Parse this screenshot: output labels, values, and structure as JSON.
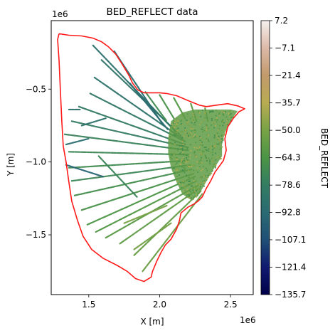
{
  "chart_data": {
    "type": "scatter",
    "title": "BED_REFLECT data",
    "xlabel": "X [m]",
    "ylabel": "Y [m]",
    "x_offset_label": "1e6",
    "y_offset_label": "1e6",
    "xlim": [
      1.235,
      2.66
    ],
    "ylim": [
      -1.91,
      -0.03
    ],
    "xticks": [
      1.5,
      2.0,
      2.5
    ],
    "xtick_labels": [
      "1.5",
      "2.0",
      "2.5"
    ],
    "yticks": [
      -0.5,
      -1.0,
      -1.5
    ],
    "ytick_labels": [
      "−0.5",
      "−1.0",
      "−1.5"
    ],
    "boundary_color": "#ff1a1a",
    "boundary": [
      [
        1.29,
        -0.12
      ],
      [
        1.36,
        -0.13
      ],
      [
        1.45,
        -0.135
      ],
      [
        1.53,
        -0.15
      ],
      [
        1.59,
        -0.175
      ],
      [
        1.64,
        -0.21
      ],
      [
        1.69,
        -0.26
      ],
      [
        1.73,
        -0.32
      ],
      [
        1.78,
        -0.4
      ],
      [
        1.81,
        -0.46
      ],
      [
        1.845,
        -0.505
      ],
      [
        1.89,
        -0.525
      ],
      [
        2.0,
        -0.525
      ],
      [
        2.05,
        -0.53
      ],
      [
        2.12,
        -0.545
      ],
      [
        2.18,
        -0.57
      ],
      [
        2.23,
        -0.59
      ],
      [
        2.28,
        -0.61
      ],
      [
        2.33,
        -0.62
      ],
      [
        2.4,
        -0.61
      ],
      [
        2.48,
        -0.6
      ],
      [
        2.55,
        -0.615
      ],
      [
        2.6,
        -0.635
      ],
      [
        2.56,
        -0.655
      ],
      [
        2.52,
        -0.7
      ],
      [
        2.48,
        -0.76
      ],
      [
        2.46,
        -0.84
      ],
      [
        2.47,
        -0.92
      ],
      [
        2.45,
        -0.99
      ],
      [
        2.42,
        -1.03
      ],
      [
        2.39,
        -1.07
      ],
      [
        2.36,
        -1.13
      ],
      [
        2.33,
        -1.18
      ],
      [
        2.3,
        -1.24
      ],
      [
        2.27,
        -1.27
      ],
      [
        2.24,
        -1.29
      ],
      [
        2.2,
        -1.31
      ],
      [
        2.15,
        -1.35
      ],
      [
        2.14,
        -1.4
      ],
      [
        2.12,
        -1.46
      ],
      [
        2.08,
        -1.53
      ],
      [
        2.04,
        -1.57
      ],
      [
        2.01,
        -1.62
      ],
      [
        1.98,
        -1.68
      ],
      [
        1.95,
        -1.75
      ],
      [
        1.94,
        -1.79
      ],
      [
        1.89,
        -1.82
      ],
      [
        1.83,
        -1.8
      ],
      [
        1.77,
        -1.75
      ],
      [
        1.7,
        -1.71
      ],
      [
        1.6,
        -1.66
      ],
      [
        1.52,
        -1.6
      ],
      [
        1.46,
        -1.51
      ],
      [
        1.42,
        -1.4
      ],
      [
        1.38,
        -1.27
      ],
      [
        1.36,
        -1.14
      ],
      [
        1.34,
        -1.0
      ],
      [
        1.32,
        -0.89
      ],
      [
        1.31,
        -0.72
      ],
      [
        1.3,
        -0.52
      ],
      [
        1.29,
        -0.3
      ],
      [
        1.28,
        -0.16
      ],
      [
        1.29,
        -0.12
      ]
    ],
    "colorbar": {
      "label": "BED_REFLECT",
      "min": -135.7,
      "max": 7.2,
      "ticks": [
        7.2,
        -7.1,
        -21.4,
        -35.7,
        -50.0,
        -64.3,
        -78.6,
        -92.8,
        -107.1,
        -121.4,
        -135.7
      ],
      "tick_labels": [
        "7.2",
        "−7.1",
        "−21.4",
        "−35.7",
        "−50.0",
        "−64.3",
        "−78.6",
        "−92.8",
        "−107.1",
        "−121.4",
        "−135.7"
      ],
      "colormap": "gist_earth",
      "colors": [
        "#f5f0ee",
        "#ddb9a8",
        "#c29a6c",
        "#b9ab52",
        "#78a245",
        "#4b9545",
        "#337c62",
        "#2a6b73",
        "#1f4f76",
        "#101a70",
        "#00004a"
      ]
    },
    "flight_lines_hub": [
      2.35,
      -0.95
    ],
    "flight_lines": [
      {
        "start": [
          1.53,
          -0.2
        ],
        "end": [
          2.12,
          -0.8
        ],
        "value": -88
      },
      {
        "start": [
          1.59,
          -0.3
        ],
        "end": [
          2.15,
          -0.82
        ],
        "value": -84
      },
      {
        "start": [
          1.54,
          -0.42
        ],
        "end": [
          2.16,
          -0.84
        ],
        "value": -86
      },
      {
        "start": [
          1.51,
          -0.53
        ],
        "end": [
          2.18,
          -0.86
        ],
        "value": -82
      },
      {
        "start": [
          1.43,
          -0.62
        ],
        "end": [
          2.18,
          -0.88
        ],
        "value": -80
      },
      {
        "start": [
          1.38,
          -0.72
        ],
        "end": [
          2.2,
          -0.9
        ],
        "value": -78
      },
      {
        "start": [
          1.33,
          -0.81
        ],
        "end": [
          2.2,
          -0.92
        ],
        "value": -75
      },
      {
        "start": [
          1.36,
          -0.93
        ],
        "end": [
          2.21,
          -0.95
        ],
        "value": -72
      },
      {
        "start": [
          1.36,
          -1.04
        ],
        "end": [
          2.21,
          -0.99
        ],
        "value": -70
      },
      {
        "start": [
          1.38,
          -1.13
        ],
        "end": [
          2.22,
          -1.02
        ],
        "value": -72
      },
      {
        "start": [
          1.4,
          -1.23
        ],
        "end": [
          2.23,
          -1.05
        ],
        "value": -68
      },
      {
        "start": [
          1.45,
          -1.33
        ],
        "end": [
          2.24,
          -1.08
        ],
        "value": -66
      },
      {
        "start": [
          1.49,
          -1.43
        ],
        "end": [
          2.25,
          -1.1
        ],
        "value": -64
      },
      {
        "start": [
          1.55,
          -1.48
        ],
        "end": [
          2.26,
          -1.13
        ],
        "value": -62
      },
      {
        "start": [
          1.62,
          -1.52
        ],
        "end": [
          2.27,
          -1.16
        ],
        "value": -60
      },
      {
        "start": [
          1.72,
          -1.56
        ],
        "end": [
          2.28,
          -1.18
        ],
        "value": -58
      },
      {
        "start": [
          1.82,
          -1.64
        ],
        "end": [
          2.29,
          -1.2
        ],
        "value": -56
      },
      {
        "start": [
          1.88,
          -1.75
        ],
        "end": [
          2.3,
          -1.22
        ],
        "value": -54
      },
      {
        "start": [
          1.68,
          -0.24
        ],
        "end": [
          2.02,
          -0.74
        ],
        "value": -90
      },
      {
        "start": [
          1.79,
          -0.46
        ],
        "end": [
          2.06,
          -0.78
        ],
        "value": -92
      },
      {
        "start": [
          1.9,
          -0.52
        ],
        "end": [
          2.05,
          -0.72
        ],
        "value": -70
      },
      {
        "start": [
          2.0,
          -0.54
        ],
        "end": [
          2.1,
          -0.7
        ],
        "value": -66
      },
      {
        "start": [
          2.1,
          -0.56
        ],
        "end": [
          2.18,
          -0.7
        ],
        "value": -62
      },
      {
        "start": [
          2.22,
          -0.6
        ],
        "end": [
          2.26,
          -0.72
        ],
        "value": -58
      },
      {
        "start": [
          2.32,
          -0.63
        ],
        "end": [
          2.34,
          -0.72
        ],
        "value": -55
      },
      {
        "start": [
          1.34,
          -1.02
        ],
        "end": [
          1.6,
          -1.1
        ],
        "value": -96
      },
      {
        "start": [
          1.57,
          -0.96
        ],
        "end": [
          1.84,
          -1.24
        ],
        "value": -74
      },
      {
        "start": [
          1.75,
          -1.42
        ],
        "end": [
          2.05,
          -1.3
        ],
        "value": -50
      },
      {
        "start": [
          1.82,
          -1.6
        ],
        "end": [
          2.08,
          -1.42
        ],
        "value": -52
      },
      {
        "start": [
          1.36,
          -0.64
        ],
        "end": [
          1.44,
          -0.64
        ],
        "value": -88
      },
      {
        "start": [
          1.45,
          -0.75
        ],
        "end": [
          1.62,
          -0.7
        ],
        "value": -86
      },
      {
        "start": [
          1.34,
          -0.88
        ],
        "end": [
          1.5,
          -0.84
        ],
        "value": -90
      }
    ],
    "dense_region_color_samples": [
      -46,
      -52,
      -58,
      -62,
      -66,
      -70,
      -40,
      -36
    ],
    "dense_region": [
      [
        2.08,
        -0.72
      ],
      [
        2.16,
        -0.66
      ],
      [
        2.25,
        -0.64
      ],
      [
        2.34,
        -0.64
      ],
      [
        2.42,
        -0.64
      ],
      [
        2.5,
        -0.64
      ],
      [
        2.55,
        -0.65
      ],
      [
        2.5,
        -0.72
      ],
      [
        2.46,
        -0.8
      ],
      [
        2.44,
        -0.88
      ],
      [
        2.44,
        -0.96
      ],
      [
        2.4,
        -1.02
      ],
      [
        2.36,
        -1.08
      ],
      [
        2.32,
        -1.15
      ],
      [
        2.28,
        -1.22
      ],
      [
        2.22,
        -1.26
      ],
      [
        2.16,
        -1.22
      ],
      [
        2.12,
        -1.14
      ],
      [
        2.08,
        -1.04
      ],
      [
        2.06,
        -0.94
      ],
      [
        2.06,
        -0.84
      ]
    ]
  }
}
